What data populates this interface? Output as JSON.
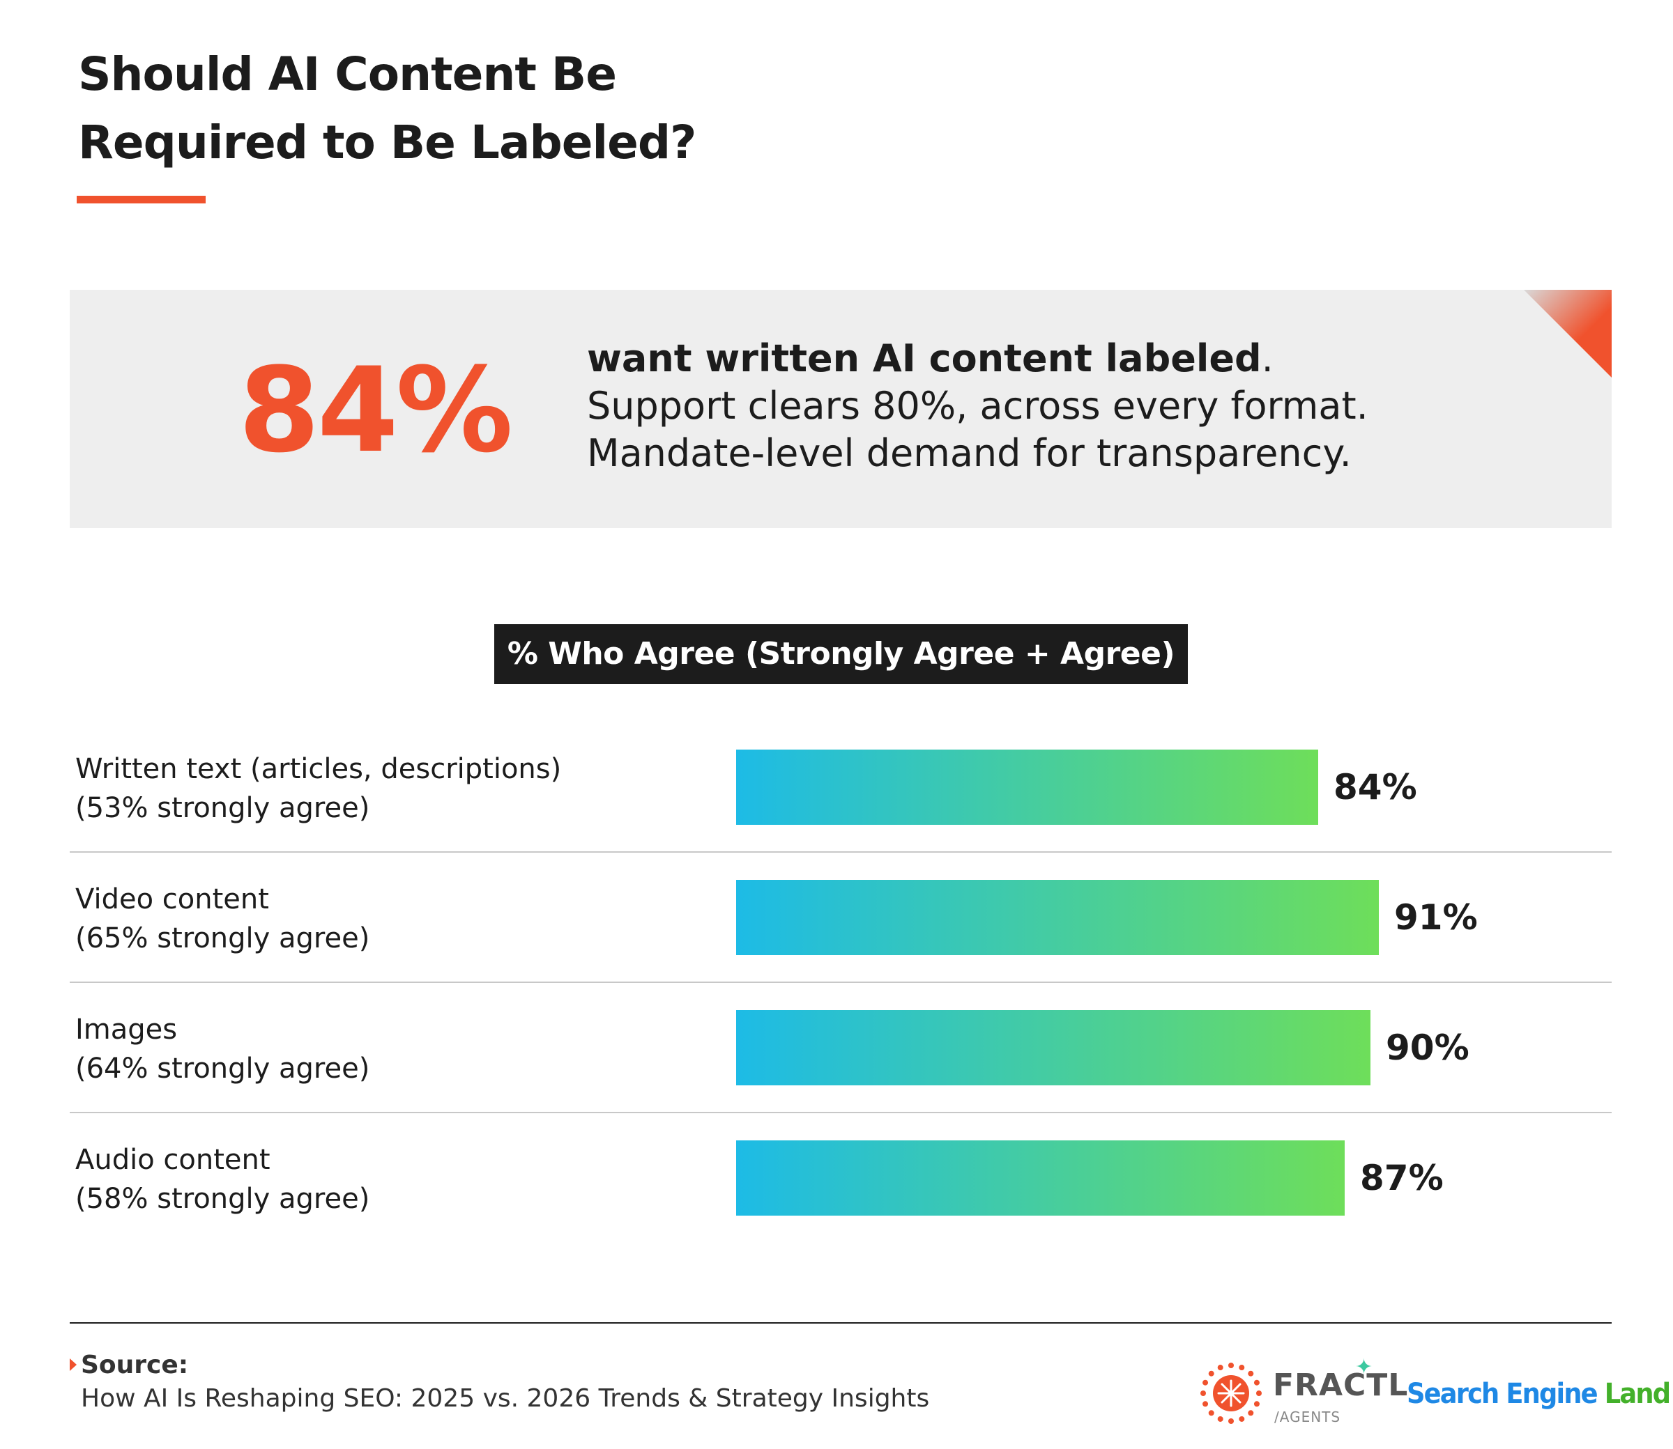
{
  "title": {
    "line1": "Should AI Content Be",
    "line2": "Required to Be Labeled?"
  },
  "callout": {
    "stat": "84%",
    "lead": "want written AI content labeled",
    "lead_punct": ".",
    "line2": "Support clears 80%, across every format.",
    "line3": "Mandate-level demand for transparency."
  },
  "chart_header": "% Who Agree (Strongly Agree + Agree)",
  "chart_data": {
    "type": "bar",
    "orientation": "horizontal",
    "xlim": [
      0,
      100
    ],
    "grid": false,
    "categories": [
      {
        "label": "Written text (articles, descriptions)",
        "sublabel": "(53% strongly agree)"
      },
      {
        "label": "Video content",
        "sublabel": "(65% strongly agree)"
      },
      {
        "label": "Images",
        "sublabel": "(64% strongly agree)"
      },
      {
        "label": "Audio content",
        "sublabel": "(58% strongly agree)"
      }
    ],
    "values": [
      84,
      91,
      90,
      87
    ],
    "value_labels": [
      "84%",
      "91%",
      "90%",
      "87%"
    ],
    "gradient": {
      "start": "#1dbbe6",
      "end": "#6ede5a"
    }
  },
  "footer": {
    "source_label": "Source:",
    "source_text": "How AI Is Reshaping SEO: 2025 vs. 2026 Trends & Strategy Insights",
    "brand1": "FRACTL",
    "brand1_sub": "/AGENTS",
    "brand2_a": "Search Engine ",
    "brand2_b": "Land"
  },
  "colors": {
    "accent": "#f0522d",
    "text": "#1c1c1c",
    "callout_bg": "#eeeeee"
  }
}
